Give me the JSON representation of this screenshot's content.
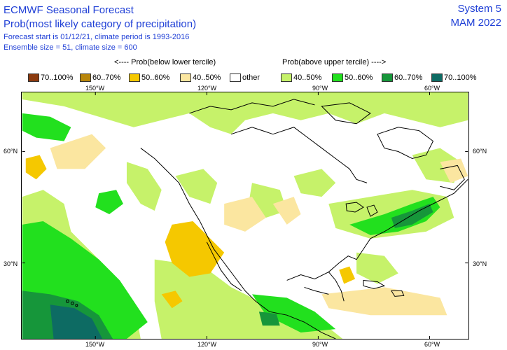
{
  "header": {
    "title": "ECMWF Seasonal Forecast",
    "subtitle": "Prob(most likely category of precipitation)",
    "line3": "Forecast start is 01/12/21, climate period is 1993-2016",
    "line4": "Ensemble size = 51, climate size = 600",
    "system": "System 5",
    "period": "MAM 2022"
  },
  "legend": {
    "below_header": "<---- Prob(below lower tercile)",
    "above_header": "Prob(above upper tercile) ---->",
    "items": [
      {
        "label": "70..100%",
        "color": "#8b3a0e"
      },
      {
        "label": "60..70%",
        "color": "#b8860b"
      },
      {
        "label": "50..60%",
        "color": "#f5c800"
      },
      {
        "label": "40..50%",
        "color": "#fbe6a0"
      },
      {
        "label": "other",
        "color": "#ffffff"
      },
      {
        "label": "40..50%",
        "color": "#c6f26a"
      },
      {
        "label": "50..60%",
        "color": "#22e01e"
      },
      {
        "label": "60..70%",
        "color": "#16963a"
      },
      {
        "label": "70..100%",
        "color": "#0d6b63"
      }
    ]
  },
  "axes": {
    "lon_top": [
      "150°W",
      "120°W",
      "90°W",
      "60°W"
    ],
    "lon_bottom": [
      "150°W",
      "120°W",
      "90°W",
      "60°W"
    ],
    "lat_left": [
      "60°N",
      "30°N"
    ],
    "lat_right": [
      "60°N",
      "30°N"
    ]
  }
}
